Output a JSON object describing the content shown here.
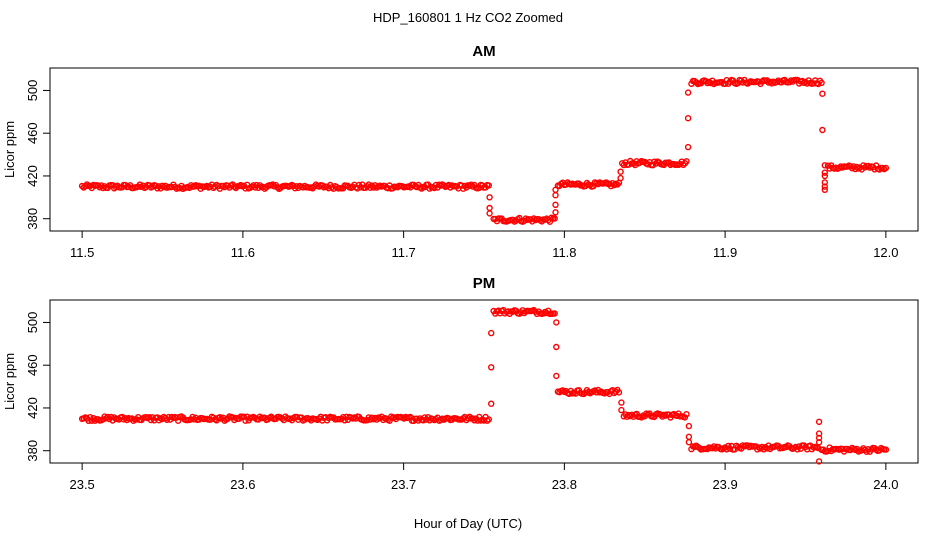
{
  "title": "HDP_160801  1 Hz CO2 Zoomed",
  "xlabel": "Hour of Day (UTC)",
  "colors": {
    "points": "#ff0000",
    "axes": "#000000",
    "background": "#ffffff"
  },
  "chart_data": [
    {
      "type": "scatter",
      "title": "AM",
      "ylabel": "Licor ppm",
      "xlim": [
        11.5,
        12.0
      ],
      "ylim": [
        370,
        520
      ],
      "xticks": [
        "11.5",
        "11.6",
        "11.7",
        "11.8",
        "11.9",
        "12.0"
      ],
      "yticks": [
        "380",
        "420",
        "460",
        "500"
      ],
      "series": [
        {
          "marker": "open-circle",
          "segments": [
            {
              "x": [
                11.5,
                11.753
              ],
              "y": 410
            },
            {
              "x": [
                11.756,
                11.794
              ],
              "y": 379
            },
            {
              "x": [
                11.796,
                11.834
              ],
              "y": 412
            },
            {
              "x": [
                11.836,
                11.876
              ],
              "y": 432
            },
            {
              "x": [
                11.879,
                11.96
              ],
              "y": 508
            },
            {
              "x": [
                11.964,
                12.0
              ],
              "y": 428
            }
          ],
          "transitions": [
            {
              "x": 11.7535,
              "y": [
                400,
                390,
                385
              ]
            },
            {
              "x": 11.7945,
              "y": [
                386,
                393,
                402,
                407
              ]
            },
            {
              "x": 11.835,
              "y": [
                418,
                424
              ]
            },
            {
              "x": 11.877,
              "y": [
                447,
                474,
                498
              ]
            },
            {
              "x": 11.9605,
              "y": [
                497,
                463
              ]
            },
            {
              "x": 11.962,
              "y": [
                430,
                410,
                407,
                414,
                420,
                423
              ]
            }
          ]
        }
      ]
    },
    {
      "type": "scatter",
      "title": "PM",
      "ylabel": "Licor ppm",
      "xlim": [
        23.5,
        24.0
      ],
      "ylim": [
        370,
        520
      ],
      "xticks": [
        "23.5",
        "23.6",
        "23.7",
        "23.8",
        "23.9",
        "24.0"
      ],
      "yticks": [
        "380",
        "420",
        "460",
        "500"
      ],
      "series": [
        {
          "marker": "open-circle",
          "segments": [
            {
              "x": [
                23.5,
                23.753
              ],
              "y": 410
            },
            {
              "x": [
                23.756,
                23.794
              ],
              "y": 510
            },
            {
              "x": [
                23.796,
                23.834
              ],
              "y": 435
            },
            {
              "x": [
                23.837,
                23.876
              ],
              "y": 413
            },
            {
              "x": [
                23.879,
                23.958
              ],
              "y": 383
            },
            {
              "x": [
                23.96,
                24.0
              ],
              "y": 381
            }
          ],
          "transitions": [
            {
              "x": 23.7545,
              "y": [
                424,
                458,
                490
              ]
            },
            {
              "x": 23.795,
              "y": [
                500,
                477,
                450
              ]
            },
            {
              "x": 23.8355,
              "y": [
                425,
                418
              ]
            },
            {
              "x": 23.8775,
              "y": [
                403,
                393,
                388
              ]
            },
            {
              "x": 23.9585,
              "y": [
                407,
                396,
                392,
                388,
                370
              ]
            }
          ]
        }
      ]
    }
  ]
}
